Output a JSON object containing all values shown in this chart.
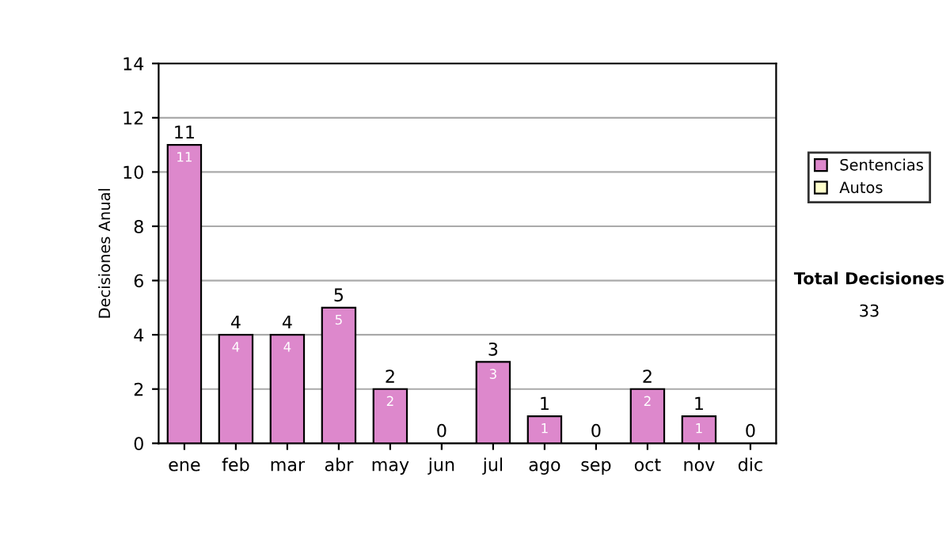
{
  "chart_data": {
    "type": "bar",
    "stacked": true,
    "ylabel": "Decisiones Anual",
    "categories": [
      "ene",
      "feb",
      "mar",
      "abr",
      "may",
      "jun",
      "jul",
      "ago",
      "sep",
      "oct",
      "nov",
      "dic"
    ],
    "series": [
      {
        "name": "Sentencias",
        "color": "#dd88cc",
        "values": [
          11,
          4,
          4,
          5,
          2,
          0,
          3,
          1,
          0,
          2,
          1,
          0
        ],
        "value_labels": [
          "11",
          "4",
          "4",
          "5",
          "2",
          null,
          "3",
          "1",
          null,
          "2",
          "1",
          null
        ]
      },
      {
        "name": "Autos",
        "color": "#ffffcc",
        "values": [
          0,
          0,
          0,
          0,
          0,
          0,
          0,
          0,
          0,
          0,
          0,
          0
        ]
      }
    ],
    "totals": [
      "11",
      "4",
      "4",
      "5",
      "2",
      "0",
      "3",
      "1",
      "0",
      "2",
      "1",
      "0"
    ],
    "ylim": [
      0,
      14
    ],
    "yticks": [
      0,
      2,
      4,
      6,
      8,
      10,
      12,
      14
    ],
    "grid": "y",
    "legend": "right",
    "annotations": [
      "Total Decisiones",
      "33"
    ]
  }
}
